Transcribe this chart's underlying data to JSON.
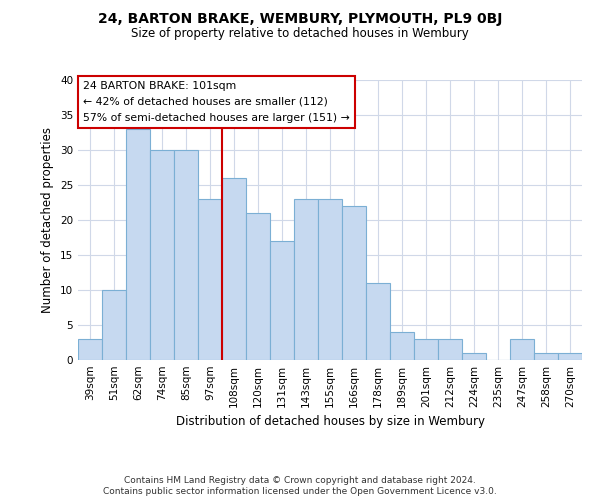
{
  "title": "24, BARTON BRAKE, WEMBURY, PLYMOUTH, PL9 0BJ",
  "subtitle": "Size of property relative to detached houses in Wembury",
  "xlabel": "Distribution of detached houses by size in Wembury",
  "ylabel": "Number of detached properties",
  "bar_labels": [
    "39sqm",
    "51sqm",
    "62sqm",
    "74sqm",
    "85sqm",
    "97sqm",
    "108sqm",
    "120sqm",
    "131sqm",
    "143sqm",
    "155sqm",
    "166sqm",
    "178sqm",
    "189sqm",
    "201sqm",
    "212sqm",
    "224sqm",
    "235sqm",
    "247sqm",
    "258sqm",
    "270sqm"
  ],
  "bar_values": [
    3,
    10,
    33,
    30,
    30,
    23,
    26,
    21,
    17,
    23,
    23,
    22,
    11,
    4,
    3,
    3,
    1,
    0,
    3,
    1,
    1
  ],
  "bar_color": "#c6d9f0",
  "bar_edgecolor": "#7bafd4",
  "vline_x": 5.5,
  "vline_color": "#cc0000",
  "annotation_line1": "24 BARTON BRAKE: 101sqm",
  "annotation_line2": "← 42% of detached houses are smaller (112)",
  "annotation_line3": "57% of semi-detached houses are larger (151) →",
  "annotation_box_color": "#ffffff",
  "annotation_box_edgecolor": "#cc0000",
  "ylim": [
    0,
    40
  ],
  "yticks": [
    0,
    5,
    10,
    15,
    20,
    25,
    30,
    35,
    40
  ],
  "footer1": "Contains HM Land Registry data © Crown copyright and database right 2024.",
  "footer2": "Contains public sector information licensed under the Open Government Licence v3.0.",
  "background_color": "#ffffff",
  "grid_color": "#d0d8e8"
}
